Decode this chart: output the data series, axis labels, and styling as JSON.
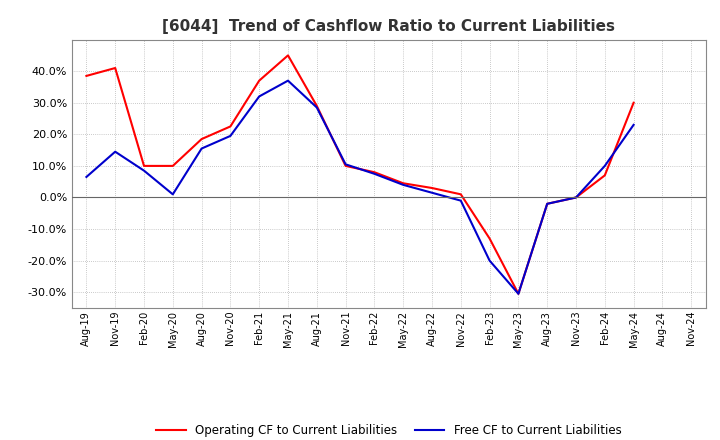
{
  "title": "[6044]  Trend of Cashflow Ratio to Current Liabilities",
  "title_fontsize": 11,
  "background_color": "#ffffff",
  "plot_bg_color": "#ffffff",
  "grid_color": "#999999",
  "x_labels": [
    "Aug-19",
    "Nov-19",
    "Feb-20",
    "May-20",
    "Aug-20",
    "Nov-20",
    "Feb-21",
    "May-21",
    "Aug-21",
    "Nov-21",
    "Feb-22",
    "May-22",
    "Aug-22",
    "Nov-22",
    "Feb-23",
    "May-23",
    "Aug-23",
    "Nov-23",
    "Feb-24",
    "May-24",
    "Aug-24",
    "Nov-24"
  ],
  "operating_cf": [
    0.385,
    0.41,
    0.1,
    0.1,
    0.185,
    0.225,
    0.37,
    0.45,
    0.29,
    0.1,
    0.08,
    0.045,
    0.03,
    0.01,
    -0.13,
    -0.305,
    -0.02,
    0.0,
    0.07,
    0.3,
    null,
    null
  ],
  "free_cf": [
    0.065,
    0.145,
    0.085,
    0.01,
    0.155,
    0.195,
    0.32,
    0.37,
    0.285,
    0.105,
    0.075,
    0.04,
    0.015,
    -0.01,
    -0.2,
    -0.305,
    -0.02,
    0.0,
    0.1,
    0.23,
    null,
    null
  ],
  "operating_color": "#ff0000",
  "free_color": "#0000cc",
  "ylim": [
    -0.35,
    0.5
  ],
  "yticks": [
    -0.3,
    -0.2,
    -0.1,
    0.0,
    0.1,
    0.2,
    0.3,
    0.4
  ],
  "legend_operating": "Operating CF to Current Liabilities",
  "legend_free": "Free CF to Current Liabilities",
  "zero_line_color": "#666666",
  "spine_color": "#888888"
}
